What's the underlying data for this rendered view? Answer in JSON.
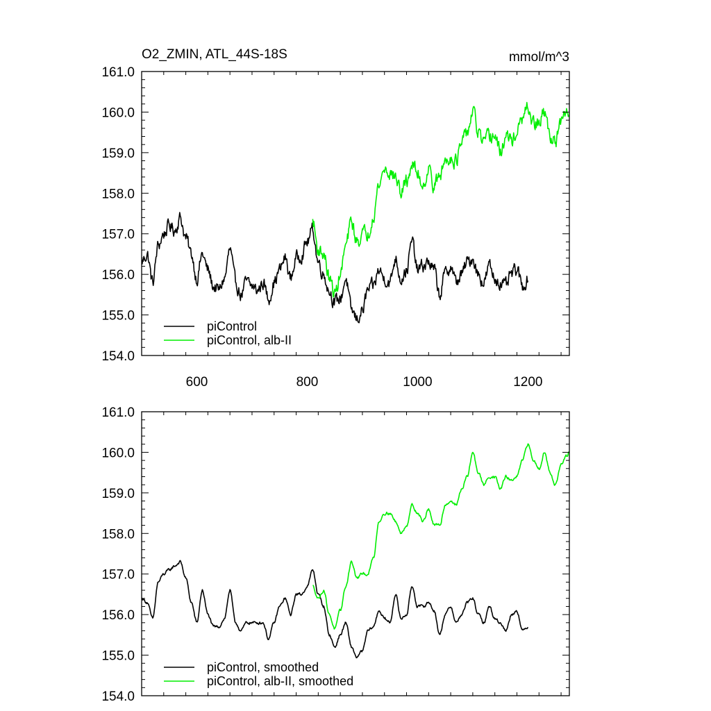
{
  "chart_data": [
    {
      "type": "line",
      "title": "O2_ZMIN, ATL_44S-18S",
      "units": "mmol/m^3",
      "xlim": [
        500,
        1275
      ],
      "ylim": [
        154.0,
        161.0
      ],
      "xticks": [
        600,
        800,
        1000,
        1200
      ],
      "xtick_labels": [
        "600",
        "800",
        "1000",
        "1200"
      ],
      "yticks": [
        154.0,
        155.0,
        156.0,
        157.0,
        158.0,
        159.0,
        160.0,
        161.0
      ],
      "ytick_labels": [
        "154.0",
        "155.0",
        "156.0",
        "157.0",
        "158.0",
        "159.0",
        "160.0",
        "161.0"
      ],
      "legend_position": "bottom-left",
      "series": [
        {
          "name": "piControl",
          "color": "#000000",
          "x_range": [
            500,
            1200
          ],
          "anchors": [
            [
              500,
              156.3
            ],
            [
              510,
              156.5
            ],
            [
              520,
              155.8
            ],
            [
              530,
              156.7
            ],
            [
              540,
              157.0
            ],
            [
              550,
              157.2
            ],
            [
              560,
              157.1
            ],
            [
              570,
              157.4
            ],
            [
              580,
              156.9
            ],
            [
              590,
              156.5
            ],
            [
              600,
              155.9
            ],
            [
              610,
              156.5
            ],
            [
              620,
              156.1
            ],
            [
              630,
              155.7
            ],
            [
              640,
              155.6
            ],
            [
              650,
              155.9
            ],
            [
              660,
              156.6
            ],
            [
              670,
              155.8
            ],
            [
              680,
              155.5
            ],
            [
              690,
              155.8
            ],
            [
              700,
              155.7
            ],
            [
              710,
              155.6
            ],
            [
              720,
              155.8
            ],
            [
              730,
              155.4
            ],
            [
              740,
              155.8
            ],
            [
              750,
              156.1
            ],
            [
              760,
              156.4
            ],
            [
              770,
              155.9
            ],
            [
              780,
              156.4
            ],
            [
              790,
              156.5
            ],
            [
              800,
              156.8
            ],
            [
              810,
              157.1
            ],
            [
              820,
              156.3
            ],
            [
              830,
              156.0
            ],
            [
              840,
              155.6
            ],
            [
              850,
              155.3
            ],
            [
              860,
              155.4
            ],
            [
              870,
              155.9
            ],
            [
              880,
              155.1
            ],
            [
              890,
              154.9
            ],
            [
              900,
              155.1
            ],
            [
              910,
              155.6
            ],
            [
              920,
              155.7
            ],
            [
              930,
              156.1
            ],
            [
              940,
              155.9
            ],
            [
              950,
              155.8
            ],
            [
              960,
              156.4
            ],
            [
              970,
              155.9
            ],
            [
              980,
              156.1
            ],
            [
              990,
              156.8
            ],
            [
              1000,
              156.1
            ],
            [
              1010,
              156.2
            ],
            [
              1020,
              156.3
            ],
            [
              1030,
              156.1
            ],
            [
              1040,
              155.5
            ],
            [
              1050,
              156.0
            ],
            [
              1060,
              156.2
            ],
            [
              1070,
              155.8
            ],
            [
              1080,
              156.0
            ],
            [
              1090,
              156.3
            ],
            [
              1100,
              156.4
            ],
            [
              1110,
              156.0
            ],
            [
              1120,
              155.8
            ],
            [
              1130,
              156.2
            ],
            [
              1140,
              155.9
            ],
            [
              1150,
              155.8
            ],
            [
              1160,
              155.7
            ],
            [
              1170,
              156.0
            ],
            [
              1180,
              156.1
            ],
            [
              1190,
              155.7
            ],
            [
              1200,
              155.9
            ]
          ],
          "noise": 0.19
        },
        {
          "name": "piControl, alb-II",
          "color": "#00ee00",
          "x_range": [
            810,
            1275
          ],
          "anchors": [
            [
              810,
              157.3
            ],
            [
              820,
              156.6
            ],
            [
              830,
              156.5
            ],
            [
              840,
              155.9
            ],
            [
              850,
              155.5
            ],
            [
              860,
              156.0
            ],
            [
              870,
              156.7
            ],
            [
              880,
              157.3
            ],
            [
              890,
              156.8
            ],
            [
              900,
              157.0
            ],
            [
              910,
              157.0
            ],
            [
              920,
              157.5
            ],
            [
              930,
              158.2
            ],
            [
              940,
              158.6
            ],
            [
              950,
              158.5
            ],
            [
              960,
              158.4
            ],
            [
              970,
              158.0
            ],
            [
              980,
              158.3
            ],
            [
              990,
              158.7
            ],
            [
              1000,
              158.5
            ],
            [
              1010,
              158.2
            ],
            [
              1020,
              158.6
            ],
            [
              1030,
              158.2
            ],
            [
              1040,
              158.4
            ],
            [
              1050,
              158.8
            ],
            [
              1060,
              158.9
            ],
            [
              1070,
              158.8
            ],
            [
              1080,
              159.2
            ],
            [
              1090,
              159.5
            ],
            [
              1100,
              160.0
            ],
            [
              1110,
              159.5
            ],
            [
              1120,
              159.2
            ],
            [
              1130,
              159.4
            ],
            [
              1140,
              159.4
            ],
            [
              1150,
              159.0
            ],
            [
              1160,
              159.4
            ],
            [
              1170,
              159.3
            ],
            [
              1180,
              159.5
            ],
            [
              1190,
              159.8
            ],
            [
              1200,
              160.1
            ],
            [
              1210,
              159.7
            ],
            [
              1220,
              159.7
            ],
            [
              1230,
              160.0
            ],
            [
              1240,
              159.4
            ],
            [
              1250,
              159.3
            ],
            [
              1260,
              159.7
            ],
            [
              1270,
              160.0
            ],
            [
              1275,
              159.9
            ]
          ],
          "noise": 0.2
        }
      ]
    },
    {
      "type": "line",
      "xlim": [
        500,
        1275
      ],
      "ylim": [
        154.0,
        161.0
      ],
      "xticks": [
        600,
        800,
        1000,
        1200
      ],
      "yticks": [
        154.0,
        155.0,
        156.0,
        157.0,
        158.0,
        159.0,
        160.0,
        161.0
      ],
      "ytick_labels": [
        "154.0",
        "155.0",
        "156.0",
        "157.0",
        "158.0",
        "159.0",
        "160.0",
        "161.0"
      ],
      "legend_position": "bottom-left",
      "series": [
        {
          "name": "piControl, smoothed",
          "color": "#000000",
          "x_range": [
            500,
            1200
          ],
          "anchors": [
            [
              500,
              156.4
            ],
            [
              510,
              156.3
            ],
            [
              520,
              155.9
            ],
            [
              530,
              156.8
            ],
            [
              540,
              157.0
            ],
            [
              550,
              157.1
            ],
            [
              560,
              157.2
            ],
            [
              570,
              157.3
            ],
            [
              580,
              156.9
            ],
            [
              590,
              156.3
            ],
            [
              600,
              155.8
            ],
            [
              610,
              156.6
            ],
            [
              620,
              156.0
            ],
            [
              630,
              155.7
            ],
            [
              640,
              155.7
            ],
            [
              650,
              155.9
            ],
            [
              660,
              156.6
            ],
            [
              670,
              155.8
            ],
            [
              680,
              155.6
            ],
            [
              690,
              155.8
            ],
            [
              700,
              155.8
            ],
            [
              710,
              155.8
            ],
            [
              720,
              155.8
            ],
            [
              730,
              155.4
            ],
            [
              740,
              155.8
            ],
            [
              750,
              156.2
            ],
            [
              760,
              156.4
            ],
            [
              770,
              156.0
            ],
            [
              780,
              156.5
            ],
            [
              790,
              156.5
            ],
            [
              800,
              156.7
            ],
            [
              810,
              157.1
            ],
            [
              820,
              156.5
            ],
            [
              830,
              156.2
            ],
            [
              840,
              155.5
            ],
            [
              850,
              155.2
            ],
            [
              860,
              155.5
            ],
            [
              870,
              155.8
            ],
            [
              880,
              155.2
            ],
            [
              890,
              154.95
            ],
            [
              900,
              155.1
            ],
            [
              910,
              155.6
            ],
            [
              920,
              155.7
            ],
            [
              930,
              156.1
            ],
            [
              940,
              155.9
            ],
            [
              950,
              155.8
            ],
            [
              960,
              156.5
            ],
            [
              970,
              155.9
            ],
            [
              980,
              156.0
            ],
            [
              990,
              156.7
            ],
            [
              1000,
              156.2
            ],
            [
              1010,
              156.2
            ],
            [
              1020,
              156.3
            ],
            [
              1030,
              156.1
            ],
            [
              1040,
              155.5
            ],
            [
              1050,
              156.0
            ],
            [
              1060,
              156.2
            ],
            [
              1070,
              155.8
            ],
            [
              1080,
              156.0
            ],
            [
              1090,
              156.3
            ],
            [
              1100,
              156.4
            ],
            [
              1110,
              156.0
            ],
            [
              1120,
              155.8
            ],
            [
              1130,
              156.2
            ],
            [
              1140,
              155.9
            ],
            [
              1150,
              155.8
            ],
            [
              1160,
              155.6
            ],
            [
              1170,
              156.0
            ],
            [
              1180,
              156.1
            ],
            [
              1190,
              155.6
            ],
            [
              1200,
              155.7
            ]
          ],
          "noise": 0.04
        },
        {
          "name": "piControl, alb-II, smoothed",
          "color": "#00ee00",
          "x_range": [
            810,
            1275
          ],
          "anchors": [
            [
              810,
              156.7
            ],
            [
              820,
              156.4
            ],
            [
              830,
              156.6
            ],
            [
              840,
              156.0
            ],
            [
              850,
              155.65
            ],
            [
              860,
              156.1
            ],
            [
              870,
              156.7
            ],
            [
              880,
              157.3
            ],
            [
              890,
              156.9
            ],
            [
              900,
              157.0
            ],
            [
              910,
              157.0
            ],
            [
              920,
              157.4
            ],
            [
              930,
              158.3
            ],
            [
              940,
              158.5
            ],
            [
              950,
              158.5
            ],
            [
              960,
              158.3
            ],
            [
              970,
              158.0
            ],
            [
              980,
              158.2
            ],
            [
              990,
              158.7
            ],
            [
              1000,
              158.5
            ],
            [
              1010,
              158.3
            ],
            [
              1020,
              158.6
            ],
            [
              1030,
              158.2
            ],
            [
              1040,
              158.2
            ],
            [
              1050,
              158.7
            ],
            [
              1060,
              158.8
            ],
            [
              1070,
              158.7
            ],
            [
              1080,
              159.1
            ],
            [
              1090,
              159.4
            ],
            [
              1100,
              160.0
            ],
            [
              1110,
              159.5
            ],
            [
              1120,
              159.2
            ],
            [
              1130,
              159.4
            ],
            [
              1140,
              159.4
            ],
            [
              1150,
              159.1
            ],
            [
              1160,
              159.4
            ],
            [
              1170,
              159.3
            ],
            [
              1180,
              159.4
            ],
            [
              1190,
              159.8
            ],
            [
              1200,
              160.2
            ],
            [
              1210,
              159.8
            ],
            [
              1220,
              159.6
            ],
            [
              1230,
              160.0
            ],
            [
              1240,
              159.5
            ],
            [
              1250,
              159.2
            ],
            [
              1260,
              159.7
            ],
            [
              1270,
              159.9
            ],
            [
              1275,
              160.0
            ]
          ],
          "noise": 0.04
        }
      ]
    }
  ]
}
